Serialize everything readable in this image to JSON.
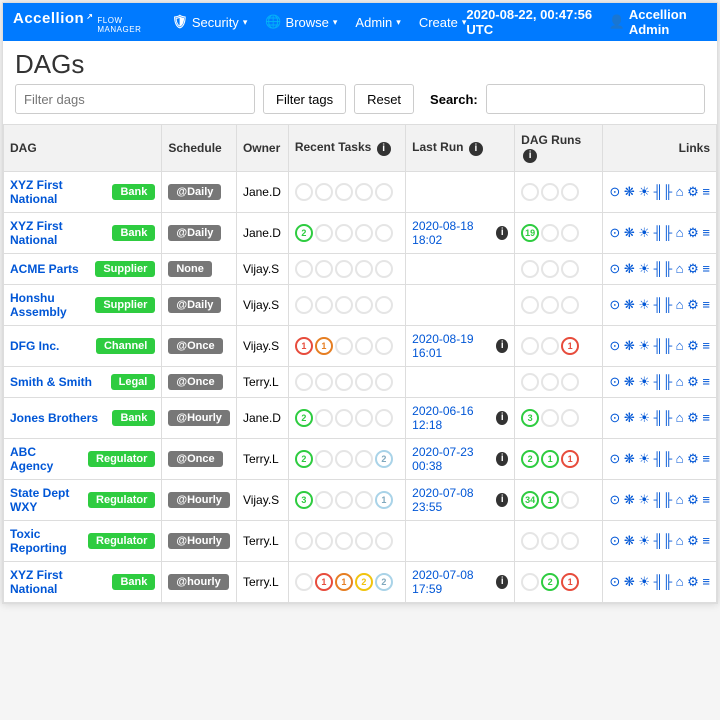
{
  "brand": {
    "name": "Accellion",
    "suffix": "FLOW MANAGER"
  },
  "nav": {
    "items": [
      {
        "icon": "🛡",
        "label": "Security",
        "caret": true
      },
      {
        "icon": "🌐",
        "label": "Browse",
        "caret": true
      },
      {
        "icon": "",
        "label": "Admin",
        "caret": true
      },
      {
        "icon": "",
        "label": "Create",
        "caret": true
      }
    ],
    "clock": "2020-08-22, 00:47:56 UTC",
    "user": "Accellion Admin"
  },
  "page_title": "DAGs",
  "controls": {
    "filter_placeholder": "Filter dags",
    "filter_tags": "Filter tags",
    "reset": "Reset",
    "search_label": "Search:"
  },
  "headers": {
    "dag": "DAG",
    "schedule": "Schedule",
    "owner": "Owner",
    "recent": "Recent Tasks",
    "lastrun": "Last Run",
    "dagruns": "DAG Runs",
    "links": "Links"
  },
  "tag_colors": {
    "Bank": "tag-green",
    "Supplier": "tag-green",
    "Channel": "tag-green",
    "Legal": "tag-green",
    "Regulator": "tag-green",
    "None": "tag-gray"
  },
  "link_icons": "⊙ ❋ ☀ ╢╟ ⌂ ⚙ ≡",
  "rows": [
    {
      "dag": "XYZ First National",
      "tag": "Bank",
      "schedule": "@Daily",
      "owner": "Jane.D",
      "recent": [],
      "lastrun": "",
      "dagruns": []
    },
    {
      "dag": "XYZ First National",
      "tag": "Bank",
      "schedule": "@Daily",
      "owner": "Jane.D",
      "recent": [
        {
          "n": "2",
          "c": "c-green"
        }
      ],
      "lastrun": "2020-08-18 18:02",
      "dagruns": [
        {
          "n": "19",
          "c": "c-green"
        }
      ]
    },
    {
      "dag": "ACME Parts",
      "tag": "Supplier",
      "schedule": "None",
      "sched_class": "tag-gray",
      "owner": "Vijay.S",
      "recent": [],
      "lastrun": "",
      "dagruns": []
    },
    {
      "dag": "Honshu Assembly",
      "tag": "Supplier",
      "schedule": "@Daily",
      "owner": "Vijay.S",
      "recent": [],
      "lastrun": "",
      "dagruns": []
    },
    {
      "dag": "DFG Inc.",
      "tag": "Channel",
      "schedule": "@Once",
      "owner": "Vijay.S",
      "recent": [
        {
          "n": "1",
          "c": "c-red"
        },
        {
          "n": "1",
          "c": "c-orange"
        }
      ],
      "lastrun": "2020-08-19 16:01",
      "dagruns": [
        {
          "n": "",
          "c": "c-empty"
        },
        {
          "n": "",
          "c": "c-empty"
        },
        {
          "n": "1",
          "c": "c-red"
        }
      ]
    },
    {
      "dag": "Smith & Smith",
      "tag": "Legal",
      "schedule": "@Once",
      "owner": "Terry.L",
      "recent": [],
      "lastrun": "",
      "dagruns": []
    },
    {
      "dag": "Jones Brothers",
      "tag": "Bank",
      "schedule": "@Hourly",
      "owner": "Jane.D",
      "recent": [
        {
          "n": "2",
          "c": "c-green"
        }
      ],
      "lastrun": "2020-06-16 12:18",
      "dagruns": [
        {
          "n": "3",
          "c": "c-green"
        }
      ]
    },
    {
      "dag": "ABC Agency",
      "tag": "Regulator",
      "schedule": "@Once",
      "owner": "Terry.L",
      "recent": [
        {
          "n": "2",
          "c": "c-green"
        },
        {
          "n": "",
          "c": "c-empty"
        },
        {
          "n": "",
          "c": "c-empty"
        },
        {
          "n": "",
          "c": "c-empty"
        },
        {
          "n": "2",
          "c": "c-lightblue"
        }
      ],
      "lastrun": "2020-07-23 00:38",
      "dagruns": [
        {
          "n": "2",
          "c": "c-green"
        },
        {
          "n": "1",
          "c": "c-green"
        },
        {
          "n": "1",
          "c": "c-red"
        }
      ]
    },
    {
      "dag": "State Dept WXY",
      "tag": "Regulator",
      "schedule": "@Hourly",
      "owner": "Vijay.S",
      "recent": [
        {
          "n": "3",
          "c": "c-green"
        },
        {
          "n": "",
          "c": "c-empty"
        },
        {
          "n": "",
          "c": "c-empty"
        },
        {
          "n": "",
          "c": "c-empty"
        },
        {
          "n": "1",
          "c": "c-lightblue"
        }
      ],
      "lastrun": "2020-07-08 23:55",
      "dagruns": [
        {
          "n": "34",
          "c": "c-green"
        },
        {
          "n": "1",
          "c": "c-green"
        }
      ]
    },
    {
      "dag": "Toxic Reporting",
      "tag": "Regulator",
      "schedule": "@Hourly",
      "owner": "Terry.L",
      "recent": [],
      "lastrun": "",
      "dagruns": []
    },
    {
      "dag": "XYZ First National",
      "tag": "Bank",
      "schedule": "@hourly",
      "owner": "Terry.L",
      "recent": [
        {
          "n": "",
          "c": "c-empty"
        },
        {
          "n": "1",
          "c": "c-red"
        },
        {
          "n": "1",
          "c": "c-orange"
        },
        {
          "n": "2",
          "c": "c-yellow"
        },
        {
          "n": "2",
          "c": "c-lightblue"
        }
      ],
      "lastrun": "2020-07-08 17:59",
      "dagruns": [
        {
          "n": "",
          "c": "c-empty"
        },
        {
          "n": "2",
          "c": "c-green"
        },
        {
          "n": "1",
          "c": "c-red"
        }
      ]
    }
  ]
}
